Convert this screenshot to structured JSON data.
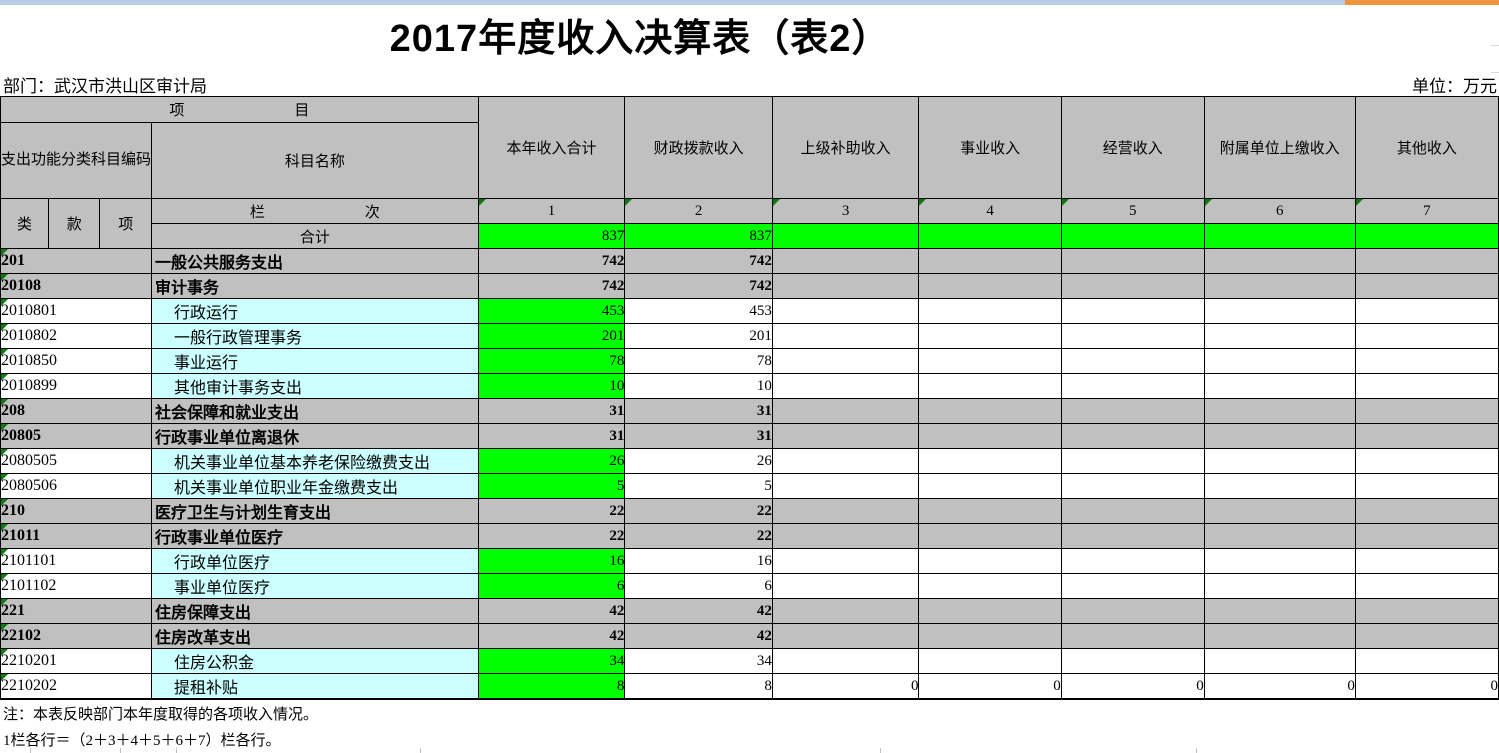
{
  "page": {
    "title": "2017年度收入决算表（表2）",
    "department": "部门：武汉市洪山区审计局",
    "unit": "单位：万元",
    "notes": [
      "注：本表反映部门本年度取得的各项收入情况。",
      "1栏各行＝（2＋3＋4＋5＋6＋7）栏各行。"
    ]
  },
  "colors": {
    "header_gray": "#C0C0C0",
    "highlight_green": "#00FF00",
    "name_cyan": "#CCFFFF",
    "flag_triangle_green": "#0A7A0A",
    "topbar_blue": "#B8CCE4",
    "topbar_orange": "#F0943C"
  },
  "table": {
    "project_header": {
      "left": "项",
      "right": "目"
    },
    "code_header": "支出功能分类科目编码",
    "subject_name_header": "科目名称",
    "code_sub_headers": [
      "类",
      "款",
      "项"
    ],
    "column_index_header": {
      "left": "栏",
      "right": "次"
    },
    "total_label": "合计",
    "value_columns": [
      "本年收入合计",
      "财政拨款收入",
      "上级补助收入",
      "事业收入",
      "经营收入",
      "附属单位上缴收入",
      "其他收入"
    ],
    "column_numbers": [
      "1",
      "2",
      "3",
      "4",
      "5",
      "6",
      "7"
    ],
    "total_values": [
      "837",
      "837",
      "",
      "",
      "",
      "",
      ""
    ],
    "rows": [
      {
        "type": "section",
        "code": "201",
        "name": "一般公共服务支出",
        "values": [
          "742",
          "742",
          "",
          "",
          "",
          "",
          ""
        ]
      },
      {
        "type": "section",
        "code": "20108",
        "name": "审计事务",
        "values": [
          "742",
          "742",
          "",
          "",
          "",
          "",
          ""
        ]
      },
      {
        "type": "detail",
        "code": "2010801",
        "name": "行政运行",
        "values": [
          "453",
          "453",
          "",
          "",
          "",
          "",
          ""
        ]
      },
      {
        "type": "detail",
        "code": "2010802",
        "name": "一般行政管理事务",
        "values": [
          "201",
          "201",
          "",
          "",
          "",
          "",
          ""
        ]
      },
      {
        "type": "detail",
        "code": "2010850",
        "name": "事业运行",
        "values": [
          "78",
          "78",
          "",
          "",
          "",
          "",
          ""
        ]
      },
      {
        "type": "detail",
        "code": "2010899",
        "name": "其他审计事务支出",
        "values": [
          "10",
          "10",
          "",
          "",
          "",
          "",
          ""
        ]
      },
      {
        "type": "section",
        "code": "208",
        "name": "社会保障和就业支出",
        "values": [
          "31",
          "31",
          "",
          "",
          "",
          "",
          ""
        ]
      },
      {
        "type": "section",
        "code": "20805",
        "name": "行政事业单位离退休",
        "values": [
          "31",
          "31",
          "",
          "",
          "",
          "",
          ""
        ]
      },
      {
        "type": "detail",
        "code": "2080505",
        "name": "机关事业单位基本养老保险缴费支出",
        "values": [
          "26",
          "26",
          "",
          "",
          "",
          "",
          ""
        ]
      },
      {
        "type": "detail",
        "code": "2080506",
        "name": "机关事业单位职业年金缴费支出",
        "values": [
          "5",
          "5",
          "",
          "",
          "",
          "",
          ""
        ]
      },
      {
        "type": "section",
        "code": "210",
        "name": "医疗卫生与计划生育支出",
        "values": [
          "22",
          "22",
          "",
          "",
          "",
          "",
          ""
        ]
      },
      {
        "type": "section",
        "code": "21011",
        "name": "行政事业单位医疗",
        "values": [
          "22",
          "22",
          "",
          "",
          "",
          "",
          ""
        ]
      },
      {
        "type": "detail",
        "code": "2101101",
        "name": "行政单位医疗",
        "values": [
          "16",
          "16",
          "",
          "",
          "",
          "",
          ""
        ]
      },
      {
        "type": "detail",
        "code": "2101102",
        "name": "事业单位医疗",
        "values": [
          "6",
          "6",
          "",
          "",
          "",
          "",
          ""
        ]
      },
      {
        "type": "section",
        "code": "221",
        "name": "住房保障支出",
        "values": [
          "42",
          "42",
          "",
          "",
          "",
          "",
          ""
        ]
      },
      {
        "type": "section",
        "code": "22102",
        "name": "住房改革支出",
        "values": [
          "42",
          "42",
          "",
          "",
          "",
          "",
          ""
        ]
      },
      {
        "type": "detail",
        "code": "2210201",
        "name": "住房公积金",
        "values": [
          "34",
          "34",
          "",
          "",
          "",
          "",
          ""
        ]
      },
      {
        "type": "detail",
        "code": "2210202",
        "name": "提租补贴",
        "values": [
          "8",
          "8",
          "0",
          "0",
          "0",
          "0",
          "0"
        ]
      }
    ]
  }
}
